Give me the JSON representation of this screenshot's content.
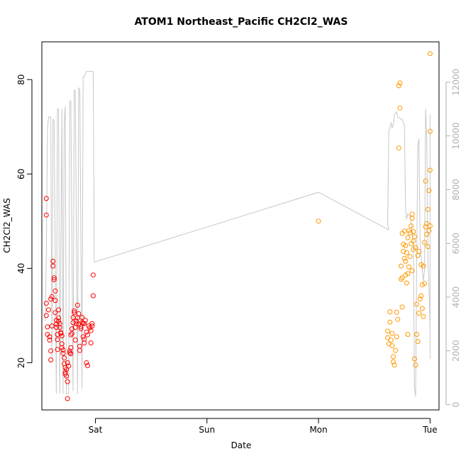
{
  "chart_data": {
    "type": "scatter",
    "title": "ATOM1 Northeast_Pacific CH2Cl2_WAS",
    "xlabel": "Date",
    "ylabel": "CH2Cl2_WAS",
    "x_ticks": [
      {
        "label": "Sat",
        "day": 1.0
      },
      {
        "label": "Sun",
        "day": 2.0
      },
      {
        "label": "Mon",
        "day": 3.0
      },
      {
        "label": "Tue",
        "day": 4.0
      }
    ],
    "xlim_days": [
      0.52,
      4.08
    ],
    "ylim": [
      10,
      88
    ],
    "y_ticks": [
      20,
      40,
      60,
      80
    ],
    "y2lim": [
      -200,
      13500
    ],
    "y2_ticks": [
      0,
      2000,
      4000,
      6000,
      8000,
      10000,
      12000
    ],
    "grid": false,
    "colors": {
      "series1": "#ff0000",
      "series2": "#ff9900",
      "altitude_line": "#c8c8c8",
      "axis": "#000000",
      "axis_right": "#b0b0b0"
    },
    "series": [
      {
        "color": "#ff0000",
        "marker": "open-circle",
        "points": [
          [
            0.56,
            54.8
          ],
          [
            0.56,
            51.3
          ],
          [
            0.56,
            32.6
          ],
          [
            0.56,
            30
          ],
          [
            0.57,
            27.6
          ],
          [
            0.57,
            26
          ],
          [
            0.58,
            31.2
          ],
          [
            0.59,
            25.5
          ],
          [
            0.59,
            24.8
          ],
          [
            0.6,
            22.5
          ],
          [
            0.6,
            20.6
          ],
          [
            0.6,
            33.5
          ],
          [
            0.61,
            34
          ],
          [
            0.61,
            27.8
          ],
          [
            0.62,
            41.5
          ],
          [
            0.62,
            40.5
          ],
          [
            0.63,
            38
          ],
          [
            0.63,
            37.6
          ],
          [
            0.64,
            35.2
          ],
          [
            0.64,
            33.2
          ],
          [
            0.64,
            30.6
          ],
          [
            0.65,
            29
          ],
          [
            0.65,
            28.2
          ],
          [
            0.65,
            27.5
          ],
          [
            0.66,
            26
          ],
          [
            0.66,
            24.9
          ],
          [
            0.66,
            22.8
          ],
          [
            0.67,
            31.2
          ],
          [
            0.67,
            29.5
          ],
          [
            0.67,
            28.8
          ],
          [
            0.68,
            28.3
          ],
          [
            0.68,
            27.5
          ],
          [
            0.69,
            26.4
          ],
          [
            0.69,
            26.2
          ],
          [
            0.7,
            25.7
          ],
          [
            0.7,
            24
          ],
          [
            0.7,
            23.2
          ],
          [
            0.71,
            22.7
          ],
          [
            0.71,
            22
          ],
          [
            0.72,
            21
          ],
          [
            0.72,
            19.8
          ],
          [
            0.73,
            19
          ],
          [
            0.73,
            18
          ],
          [
            0.73,
            17.6
          ],
          [
            0.74,
            17.2
          ],
          [
            0.74,
            18.6
          ],
          [
            0.75,
            20
          ],
          [
            0.75,
            16
          ],
          [
            0.75,
            12.4
          ],
          [
            0.76,
            19.3
          ],
          [
            0.77,
            22.5
          ],
          [
            0.77,
            22.1
          ],
          [
            0.78,
            21.9
          ],
          [
            0.78,
            23.2
          ],
          [
            0.78,
            25.9
          ],
          [
            0.79,
            26.2
          ],
          [
            0.79,
            27.2
          ],
          [
            0.8,
            28.5
          ],
          [
            0.8,
            29.6
          ],
          [
            0.81,
            30.6
          ],
          [
            0.81,
            31
          ],
          [
            0.82,
            24.8
          ],
          [
            0.82,
            27.5
          ],
          [
            0.83,
            28.3
          ],
          [
            0.83,
            28.8
          ],
          [
            0.84,
            29.5
          ],
          [
            0.84,
            32.2
          ],
          [
            0.85,
            30.4
          ],
          [
            0.85,
            28.2
          ],
          [
            0.86,
            23.5
          ],
          [
            0.86,
            22.6
          ],
          [
            0.87,
            27.2
          ],
          [
            0.87,
            27.6
          ],
          [
            0.88,
            28.5
          ],
          [
            0.88,
            29.6
          ],
          [
            0.89,
            28.4
          ],
          [
            0.89,
            25.5
          ],
          [
            0.9,
            25
          ],
          [
            0.9,
            24.2
          ],
          [
            0.9,
            28.3
          ],
          [
            0.91,
            29
          ],
          [
            0.92,
            26.5
          ],
          [
            0.92,
            20
          ],
          [
            0.93,
            19.4
          ],
          [
            0.93,
            25.9
          ],
          [
            0.94,
            27.8
          ],
          [
            0.95,
            27.4
          ],
          [
            0.96,
            24.2
          ],
          [
            0.96,
            26.8
          ],
          [
            0.97,
            27.8
          ],
          [
            0.97,
            28.3
          ],
          [
            0.98,
            38.6
          ],
          [
            0.98,
            34.2
          ]
        ]
      },
      {
        "color": "#ff9900",
        "marker": "open-circle",
        "points": [
          [
            3.0,
            50
          ],
          [
            3.62,
            26.7
          ],
          [
            3.62,
            25.3
          ],
          [
            3.63,
            24
          ],
          [
            3.64,
            30.8
          ],
          [
            3.64,
            28.6
          ],
          [
            3.65,
            24.8
          ],
          [
            3.66,
            26.2
          ],
          [
            3.66,
            23.6
          ],
          [
            3.67,
            21.3
          ],
          [
            3.67,
            20.2
          ],
          [
            3.68,
            19.5
          ],
          [
            3.69,
            22.6
          ],
          [
            3.7,
            25.5
          ],
          [
            3.7,
            30.7
          ],
          [
            3.71,
            29.2
          ],
          [
            3.72,
            65.5
          ],
          [
            3.72,
            78.7
          ],
          [
            3.73,
            79.3
          ],
          [
            3.73,
            74
          ],
          [
            3.74,
            40.5
          ],
          [
            3.74,
            37.7
          ],
          [
            3.75,
            31.8
          ],
          [
            3.75,
            47.4
          ],
          [
            3.76,
            45.1
          ],
          [
            3.76,
            43.6
          ],
          [
            3.77,
            42.1
          ],
          [
            3.78,
            41.5
          ],
          [
            3.78,
            38.6
          ],
          [
            3.79,
            36.9
          ],
          [
            3.8,
            26
          ],
          [
            3.8,
            38.9
          ],
          [
            3.81,
            48
          ],
          [
            3.82,
            47.5
          ],
          [
            3.83,
            49
          ],
          [
            3.84,
            51.5
          ],
          [
            3.84,
            50.6
          ],
          [
            3.85,
            45.8
          ],
          [
            3.85,
            44
          ],
          [
            3.86,
            20.8
          ],
          [
            3.87,
            19.5
          ],
          [
            3.88,
            32.4
          ],
          [
            3.88,
            26
          ],
          [
            3.89,
            24.5
          ],
          [
            3.9,
            30.5
          ],
          [
            3.91,
            33.5
          ],
          [
            3.92,
            40.8
          ],
          [
            3.93,
            36.5
          ],
          [
            3.94,
            40.5
          ],
          [
            3.95,
            45.5
          ],
          [
            3.96,
            48.8
          ],
          [
            3.96,
            58.5
          ],
          [
            3.97,
            49.5
          ],
          [
            3.98,
            52.5
          ],
          [
            3.99,
            56.5
          ],
          [
            3.99,
            48
          ],
          [
            4.0,
            69
          ],
          [
            4.0,
            60.8
          ],
          [
            4.0,
            85.5
          ],
          [
            4.0,
            49
          ],
          [
            3.78,
            44.8
          ],
          [
            3.79,
            43.3
          ],
          [
            3.8,
            46.5
          ],
          [
            3.82,
            42.5
          ],
          [
            3.83,
            45.2
          ],
          [
            3.85,
            47.8
          ],
          [
            3.86,
            46.7
          ],
          [
            3.87,
            44.4
          ],
          [
            3.89,
            42.7
          ],
          [
            3.9,
            43.6
          ],
          [
            3.92,
            34.2
          ],
          [
            3.93,
            31.5
          ],
          [
            3.94,
            29.8
          ],
          [
            3.95,
            36.8
          ],
          [
            3.97,
            47.2
          ],
          [
            3.98,
            44.6
          ],
          [
            3.75,
            38
          ],
          [
            3.77,
            47.9
          ],
          [
            3.81,
            40.3
          ],
          [
            3.84,
            39.5
          ]
        ]
      }
    ],
    "altitude_line": {
      "points": [
        [
          0.55,
          3100
        ],
        [
          0.56,
          5500
        ],
        [
          0.57,
          10200
        ],
        [
          0.58,
          10700
        ],
        [
          0.6,
          10700
        ],
        [
          0.61,
          1700
        ],
        [
          0.62,
          10600
        ],
        [
          0.63,
          10600
        ],
        [
          0.65,
          400
        ],
        [
          0.66,
          11000
        ],
        [
          0.67,
          11000
        ],
        [
          0.68,
          400
        ],
        [
          0.7,
          11000
        ],
        [
          0.71,
          400
        ],
        [
          0.72,
          10500
        ],
        [
          0.73,
          11100
        ],
        [
          0.74,
          400
        ],
        [
          0.76,
          400
        ],
        [
          0.77,
          11300
        ],
        [
          0.78,
          11300
        ],
        [
          0.8,
          500
        ],
        [
          0.81,
          11700
        ],
        [
          0.82,
          11700
        ],
        [
          0.84,
          400
        ],
        [
          0.85,
          11800
        ],
        [
          0.86,
          11700
        ],
        [
          0.88,
          600
        ],
        [
          0.89,
          12200
        ],
        [
          0.9,
          12200
        ],
        [
          0.92,
          12400
        ],
        [
          0.93,
          12400
        ],
        [
          0.94,
          12400
        ],
        [
          0.96,
          12400
        ],
        [
          0.97,
          12400
        ],
        [
          0.98,
          12400
        ],
        [
          0.99,
          5300
        ],
        [
          3.0,
          7900
        ],
        [
          3.63,
          6500
        ],
        [
          3.62,
          6700
        ],
        [
          3.63,
          10200
        ],
        [
          3.64,
          10300
        ],
        [
          3.65,
          10500
        ],
        [
          3.66,
          10300
        ],
        [
          3.67,
          10400
        ],
        [
          3.68,
          10800
        ],
        [
          3.7,
          10900
        ],
        [
          3.71,
          10700
        ],
        [
          3.75,
          10600
        ],
        [
          3.77,
          10400
        ],
        [
          3.78,
          7300
        ],
        [
          3.79,
          6900
        ],
        [
          3.8,
          7100
        ],
        [
          3.82,
          7000
        ],
        [
          3.83,
          6800
        ],
        [
          3.85,
          6000
        ],
        [
          3.86,
          600
        ],
        [
          3.87,
          300
        ],
        [
          3.88,
          5200
        ],
        [
          3.89,
          9600
        ],
        [
          3.9,
          9900
        ],
        [
          3.91,
          6200
        ],
        [
          3.92,
          5500
        ],
        [
          3.93,
          5000
        ],
        [
          3.94,
          4600
        ],
        [
          3.95,
          5000
        ],
        [
          3.96,
          11000
        ],
        [
          3.97,
          9800
        ],
        [
          3.98,
          5500
        ],
        [
          3.99,
          4400
        ],
        [
          4.0,
          2800
        ],
        [
          4.0,
          1700
        ],
        [
          4.0,
          10800
        ]
      ]
    }
  }
}
